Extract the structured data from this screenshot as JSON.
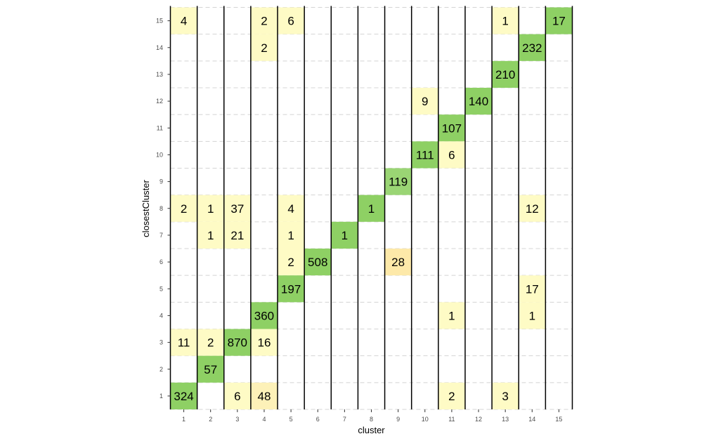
{
  "chart_data": {
    "type": "heatmap",
    "xlabel": "cluster",
    "ylabel": "closestCluster",
    "x_categories": [
      "1",
      "2",
      "3",
      "4",
      "5",
      "6",
      "7",
      "8",
      "9",
      "10",
      "11",
      "12",
      "13",
      "14",
      "15"
    ],
    "y_categories": [
      "1",
      "2",
      "3",
      "4",
      "5",
      "6",
      "7",
      "8",
      "9",
      "10",
      "11",
      "12",
      "13",
      "14",
      "15"
    ],
    "cells": [
      {
        "x": "1",
        "y": "15",
        "value": 4,
        "color": "#fefbc5"
      },
      {
        "x": "4",
        "y": "15",
        "value": 2,
        "color": "#fefbc5"
      },
      {
        "x": "5",
        "y": "15",
        "value": 6,
        "color": "#fefbc5"
      },
      {
        "x": "13",
        "y": "15",
        "value": 1,
        "color": "#fefbc5"
      },
      {
        "x": "15",
        "y": "15",
        "value": 17,
        "color": "#8ed064"
      },
      {
        "x": "4",
        "y": "14",
        "value": 2,
        "color": "#fefbc5"
      },
      {
        "x": "14",
        "y": "14",
        "value": 232,
        "color": "#8ed064"
      },
      {
        "x": "13",
        "y": "13",
        "value": 210,
        "color": "#8ed064"
      },
      {
        "x": "10",
        "y": "12",
        "value": 9,
        "color": "#fefbc5"
      },
      {
        "x": "12",
        "y": "12",
        "value": 140,
        "color": "#8ed064"
      },
      {
        "x": "11",
        "y": "11",
        "value": 107,
        "color": "#8ed064"
      },
      {
        "x": "10",
        "y": "10",
        "value": 111,
        "color": "#8ed064"
      },
      {
        "x": "11",
        "y": "10",
        "value": 6,
        "color": "#fefbc5"
      },
      {
        "x": "9",
        "y": "9",
        "value": 119,
        "color": "#9ad574"
      },
      {
        "x": "1",
        "y": "8",
        "value": 2,
        "color": "#fefbc5"
      },
      {
        "x": "2",
        "y": "8",
        "value": 1,
        "color": "#fefbc5"
      },
      {
        "x": "3",
        "y": "8",
        "value": 37,
        "color": "#fefbc5"
      },
      {
        "x": "5",
        "y": "8",
        "value": 4,
        "color": "#fefbc5"
      },
      {
        "x": "8",
        "y": "8",
        "value": 1,
        "color": "#8ed064"
      },
      {
        "x": "14",
        "y": "8",
        "value": 12,
        "color": "#fefbc5"
      },
      {
        "x": "2",
        "y": "7",
        "value": 1,
        "color": "#fefbc5"
      },
      {
        "x": "3",
        "y": "7",
        "value": 21,
        "color": "#fefbc5"
      },
      {
        "x": "5",
        "y": "7",
        "value": 1,
        "color": "#fefbc5"
      },
      {
        "x": "7",
        "y": "7",
        "value": 1,
        "color": "#8ed064"
      },
      {
        "x": "5",
        "y": "6",
        "value": 2,
        "color": "#fefbc5"
      },
      {
        "x": "6",
        "y": "6",
        "value": 508,
        "color": "#8ed064"
      },
      {
        "x": "9",
        "y": "6",
        "value": 28,
        "color": "#fde9a9"
      },
      {
        "x": "5",
        "y": "5",
        "value": 197,
        "color": "#8ed064"
      },
      {
        "x": "14",
        "y": "5",
        "value": 17,
        "color": "#fefbc5"
      },
      {
        "x": "4",
        "y": "4",
        "value": 360,
        "color": "#8ed064"
      },
      {
        "x": "11",
        "y": "4",
        "value": 1,
        "color": "#fefbc5"
      },
      {
        "x": "14",
        "y": "4",
        "value": 1,
        "color": "#fefbc5"
      },
      {
        "x": "1",
        "y": "3",
        "value": 11,
        "color": "#fefbc5"
      },
      {
        "x": "2",
        "y": "3",
        "value": 2,
        "color": "#fefbc5"
      },
      {
        "x": "3",
        "y": "3",
        "value": 870,
        "color": "#8ed064"
      },
      {
        "x": "4",
        "y": "3",
        "value": 16,
        "color": "#fefbc5"
      },
      {
        "x": "2",
        "y": "2",
        "value": 57,
        "color": "#8ed064"
      },
      {
        "x": "1",
        "y": "1",
        "value": 324,
        "color": "#8ed064"
      },
      {
        "x": "3",
        "y": "1",
        "value": 6,
        "color": "#fefbc5"
      },
      {
        "x": "4",
        "y": "1",
        "value": 48,
        "color": "#fdf1b8"
      },
      {
        "x": "11",
        "y": "1",
        "value": 2,
        "color": "#fefbc5"
      },
      {
        "x": "13",
        "y": "1",
        "value": 3,
        "color": "#fefbc5"
      }
    ],
    "grid": true,
    "legend": "none"
  }
}
